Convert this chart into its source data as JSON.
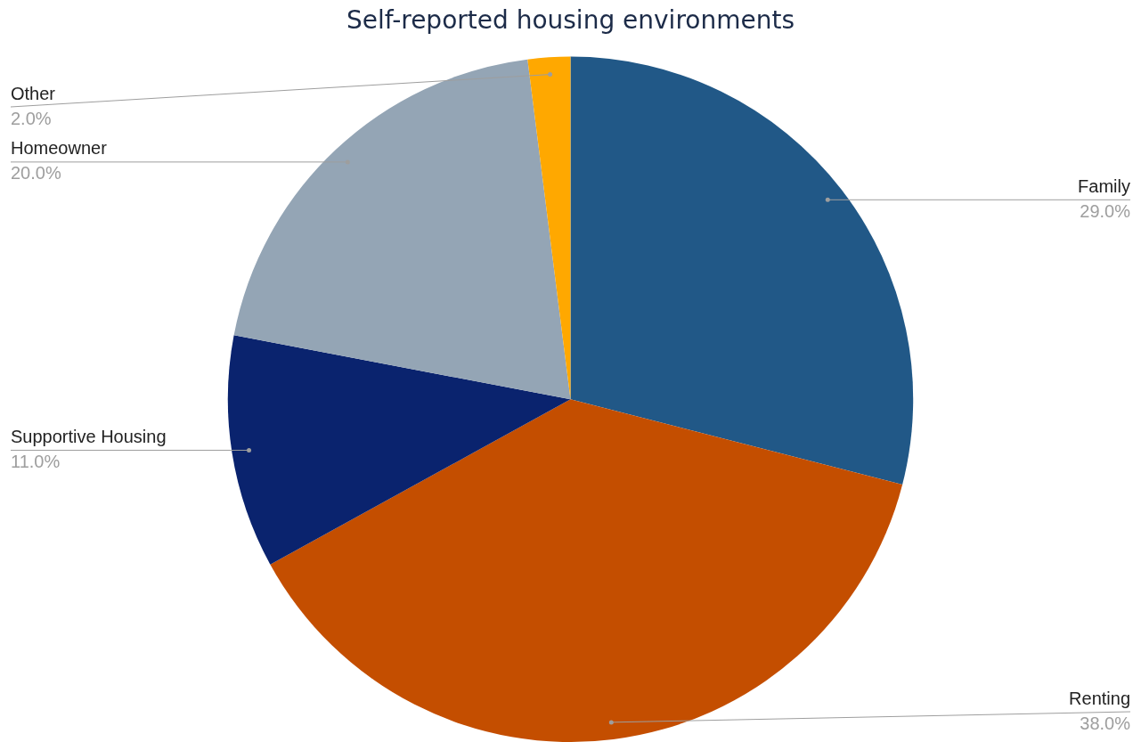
{
  "chart_data": {
    "type": "pie",
    "title": "Self-reported housing environments",
    "categories": [
      "Family",
      "Renting",
      "Supportive Housing",
      "Homeowner",
      "Other"
    ],
    "values": [
      29,
      38,
      11,
      20,
      2
    ],
    "value_labels": [
      "29.0%",
      "38.0%",
      "11.0%",
      "20.0%",
      "2.0%"
    ],
    "colors": [
      "#215887",
      "#c44e00",
      "#0a236e",
      "#94a5b5",
      "#ffa800"
    ],
    "legend": false
  }
}
